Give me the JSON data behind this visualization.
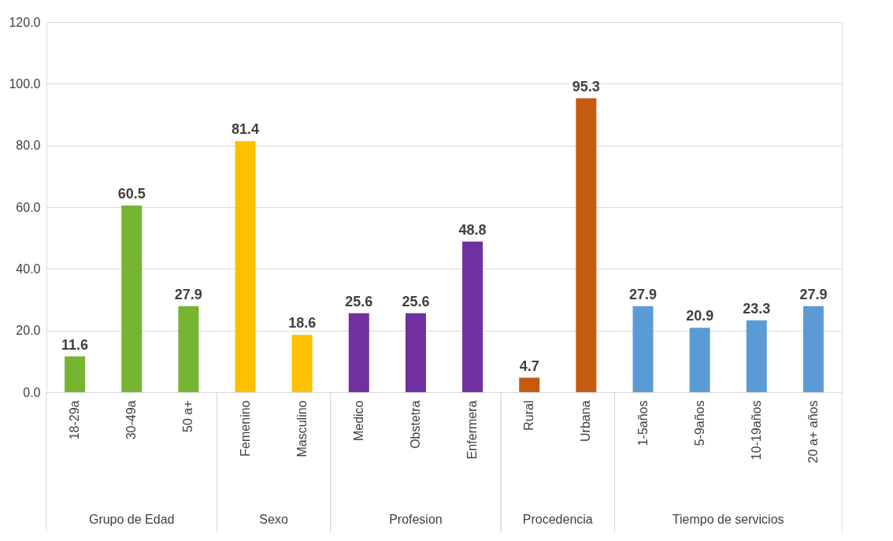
{
  "chart_data": {
    "type": "bar",
    "categories": [
      "18-29a",
      "30-49a",
      "50 a+",
      "Femenino",
      "Masculino",
      "Medico",
      "Obstetra",
      "Enfermera",
      "Rural",
      "Urbana",
      "1-5años",
      "5-9años",
      "10-19años",
      "20 a+ años"
    ],
    "series": [
      {
        "color": "#76b531",
        "values": [
          11.6,
          60.5,
          27.9,
          null,
          null,
          null,
          null,
          null,
          null,
          null,
          null,
          null,
          null,
          null
        ]
      },
      {
        "color": "#ffc000",
        "values": [
          null,
          null,
          null,
          81.4,
          18.6,
          null,
          null,
          null,
          null,
          null,
          null,
          null,
          null,
          null
        ]
      },
      {
        "color": "#7030a0",
        "values": [
          null,
          null,
          null,
          null,
          null,
          25.6,
          25.6,
          48.8,
          null,
          null,
          null,
          null,
          null,
          null
        ]
      },
      {
        "color": "#c55a11",
        "values": [
          null,
          null,
          null,
          null,
          null,
          null,
          null,
          null,
          4.7,
          95.3,
          null,
          null,
          null,
          null
        ]
      },
      {
        "color": "#5b9bd5",
        "values": [
          null,
          null,
          null,
          null,
          null,
          null,
          null,
          null,
          null,
          null,
          27.9,
          20.9,
          23.3,
          27.9
        ]
      }
    ],
    "ylim": [
      0,
      120
    ],
    "yticks": [
      {
        "value": 0,
        "label": "0.0"
      },
      {
        "value": 20,
        "label": "20.0"
      },
      {
        "value": 40,
        "label": "40.0"
      },
      {
        "value": 60,
        "label": "60.0"
      },
      {
        "value": 80,
        "label": "80.0"
      },
      {
        "value": 100,
        "label": "100.0"
      },
      {
        "value": 120,
        "label": "120.0"
      }
    ],
    "annotations": [
      "Grupo de Edad",
      "Sexo",
      "Profesion",
      "Procedencia",
      "Tiempo de servicios"
    ],
    "grid": "y",
    "data_labels": true,
    "legend": false
  }
}
